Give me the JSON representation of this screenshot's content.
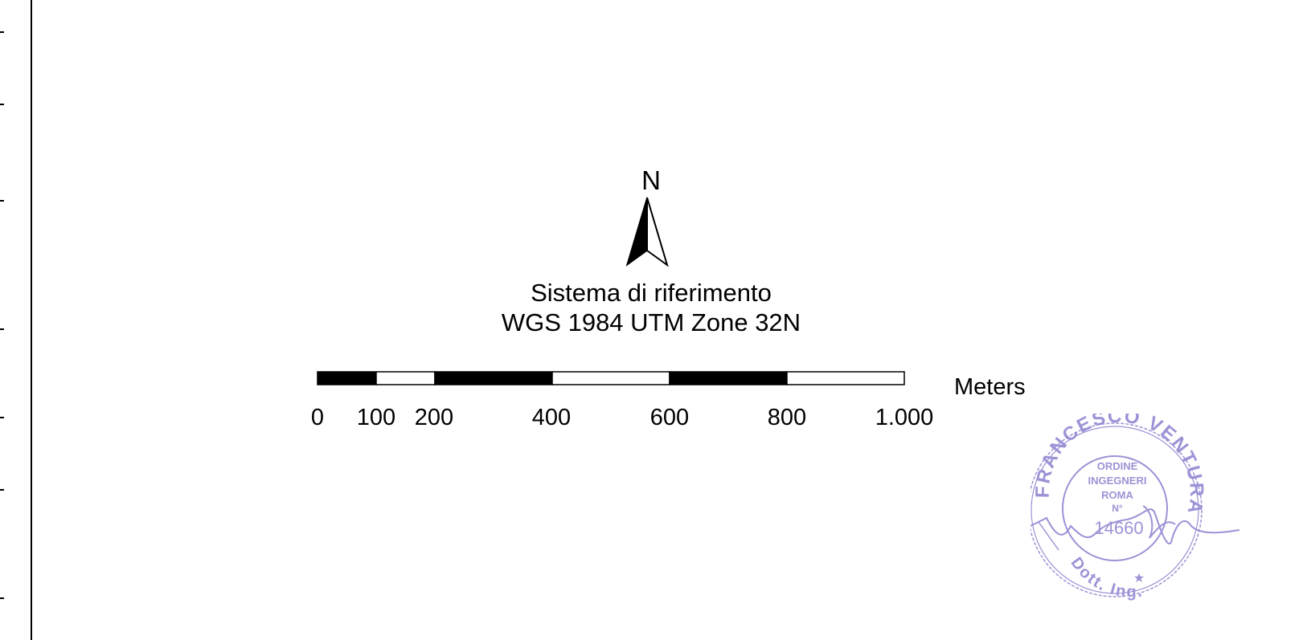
{
  "north_arrow": {
    "label": "N",
    "icon": "north-arrow-icon"
  },
  "reference_system": {
    "line1": "Sistema di riferimento",
    "line2": "WGS 1984 UTM Zone 32N"
  },
  "scale_bar": {
    "unit": "Meters",
    "ticks": [
      "0",
      "100",
      "200",
      "400",
      "600",
      "800",
      "1.000"
    ],
    "segment_colors": [
      "#000000",
      "#ffffff",
      "#000000",
      "#ffffff",
      "#000000",
      "#ffffff"
    ]
  },
  "stamp": {
    "ring_text": "FRANCESCO VENTURA",
    "lower_text": "Dott. Ing.",
    "center_lines": [
      "ORDINE",
      "INGEGNERI",
      "ROMA",
      "N°"
    ],
    "number": "14660",
    "ink_color": "#9b93d6"
  }
}
